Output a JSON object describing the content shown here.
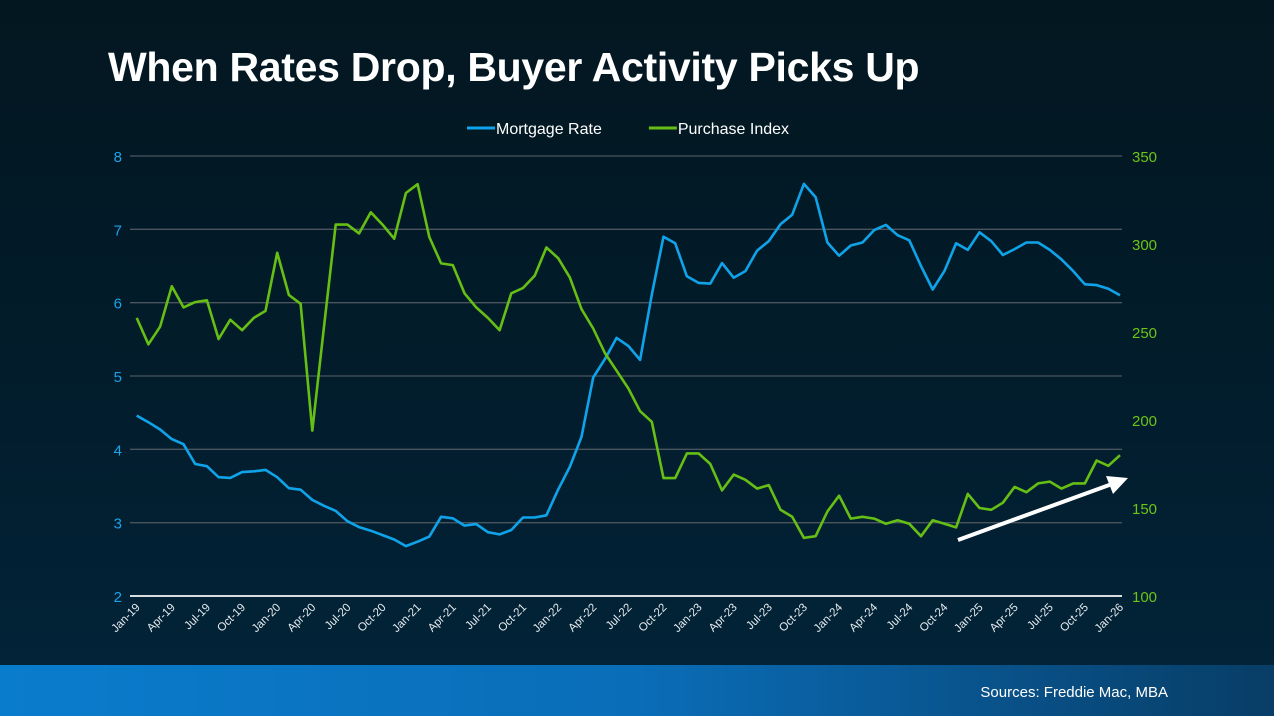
{
  "title": "When Rates Drop, Buyer Activity Picks Up",
  "footer": {
    "sources": "Sources: Freddie Mac, MBA"
  },
  "chart_data": {
    "type": "line",
    "title": "When Rates Drop, Buyer Activity Picks Up",
    "legend_position": "top",
    "grid": true,
    "x_tick_labels": [
      "Jan-19",
      "Apr-19",
      "Jul-19",
      "Oct-19",
      "Jan-20",
      "Apr-20",
      "Jul-20",
      "Oct-20",
      "Jan-21",
      "Apr-21",
      "Jul-21",
      "Oct-21",
      "Jan-22",
      "Apr-22",
      "Jul-22",
      "Oct-22",
      "Jan-23",
      "Apr-23",
      "Jul-23",
      "Oct-23",
      "Jan-24",
      "Apr-24",
      "Jul-24",
      "Oct-24",
      "Jan-25",
      "Apr-25",
      "Jul-25",
      "Oct-25",
      "Jan-26"
    ],
    "x_range": [
      "Jan-19",
      "Jan-26"
    ],
    "y_left": {
      "ticks": [
        2,
        3,
        4,
        5,
        6,
        7,
        8
      ],
      "range": [
        2,
        8
      ],
      "color": "#1aa3e8"
    },
    "y_right": {
      "ticks": [
        100,
        150,
        200,
        250,
        300,
        350
      ],
      "range": [
        100,
        350
      ],
      "color": "#6cc417"
    },
    "series": [
      {
        "name": "Mortgage Rate",
        "axis": "left",
        "color": "#0fa4ea",
        "values": [
          4.46,
          4.37,
          4.27,
          4.14,
          4.07,
          3.8,
          3.77,
          3.62,
          3.61,
          3.69,
          3.7,
          3.72,
          3.62,
          3.47,
          3.45,
          3.31,
          3.23,
          3.16,
          3.02,
          2.94,
          2.89,
          2.83,
          2.77,
          2.68,
          2.74,
          2.81,
          3.08,
          3.06,
          2.96,
          2.98,
          2.87,
          2.84,
          2.9,
          3.07,
          3.07,
          3.1,
          3.45,
          3.76,
          4.17,
          4.98,
          5.23,
          5.52,
          5.41,
          5.22,
          6.11,
          6.9,
          6.81,
          6.36,
          6.27,
          6.26,
          6.54,
          6.34,
          6.43,
          6.71,
          6.84,
          7.07,
          7.2,
          7.62,
          7.44,
          6.82,
          6.64,
          6.78,
          6.82,
          6.99,
          7.06,
          6.92,
          6.85,
          6.5,
          6.18,
          6.43,
          6.81,
          6.72,
          6.96,
          6.84,
          6.65,
          6.73,
          6.82,
          6.82,
          6.72,
          6.59,
          6.43,
          6.25,
          6.24,
          6.19,
          6.1
        ]
      },
      {
        "name": "Purchase Index",
        "axis": "right",
        "color": "#66bf14",
        "values": [
          258,
          243,
          253,
          276,
          264,
          267,
          268,
          246,
          257,
          251,
          258,
          262,
          295,
          271,
          266,
          194,
          253,
          311,
          311,
          306,
          318,
          311,
          303,
          329,
          334,
          304,
          289,
          288,
          272,
          264,
          258,
          251,
          272,
          275,
          282,
          298,
          292,
          281,
          263,
          252,
          238,
          228,
          218,
          205,
          199,
          167,
          167,
          181,
          181,
          175,
          160,
          169,
          166,
          161,
          163,
          149,
          145,
          133,
          134,
          148,
          157,
          144,
          145,
          144,
          141,
          143,
          141,
          134,
          143,
          141,
          139,
          158,
          150,
          149,
          153,
          162,
          159,
          164,
          165,
          161,
          164,
          164,
          177,
          174,
          180
        ]
      }
    ],
    "annotation": "upward-trend-arrow"
  }
}
